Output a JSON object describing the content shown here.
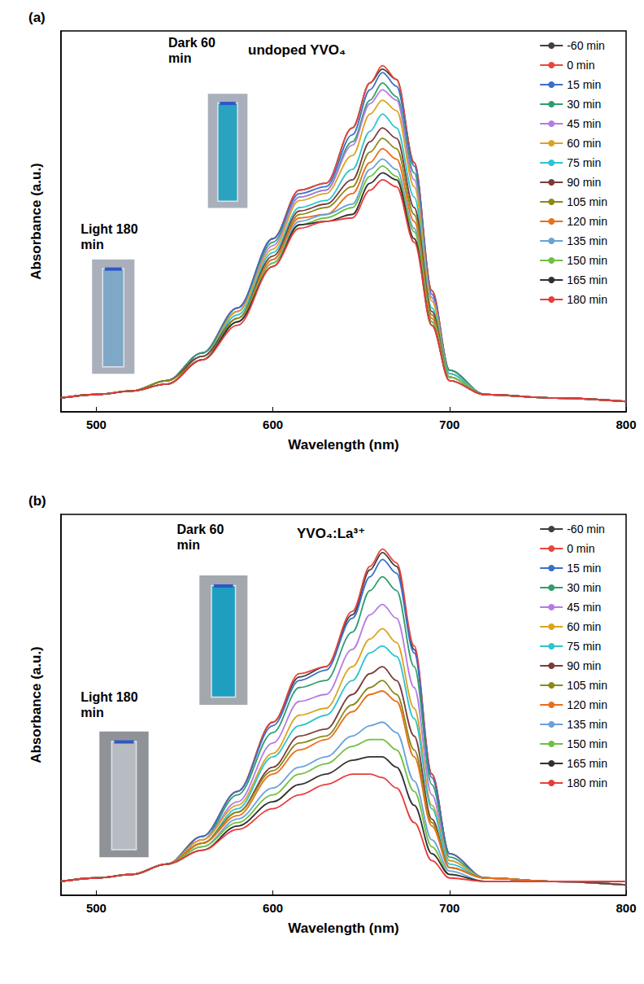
{
  "chart_data": [
    {
      "type": "line",
      "panel": "(a)",
      "title": "undoped YVO₄",
      "x_label": "Wavelength (nm)",
      "y_label": "Absorbance (a.u.)",
      "xlim": [
        480,
        800
      ],
      "xticks": [
        500,
        600,
        700,
        800
      ],
      "ylim": [
        0,
        1.1
      ],
      "yticks": [],
      "grid": false,
      "legend": "top-right",
      "tick_labels": "x",
      "annotations": [
        "Dark 60 min",
        "Light 180 min"
      ],
      "x": [
        480,
        500,
        520,
        540,
        560,
        580,
        600,
        615,
        630,
        645,
        655,
        662,
        670,
        680,
        690,
        700,
        720,
        760,
        800
      ],
      "series": [
        {
          "name": "-60 min",
          "color": "#404040",
          "values": [
            0.04,
            0.05,
            0.06,
            0.09,
            0.17,
            0.3,
            0.5,
            0.64,
            0.66,
            0.82,
            0.95,
            0.99,
            0.96,
            0.72,
            0.35,
            0.12,
            0.05,
            0.04,
            0.03
          ]
        },
        {
          "name": "0 min",
          "color": "#e8463c",
          "values": [
            0.04,
            0.05,
            0.06,
            0.09,
            0.17,
            0.3,
            0.5,
            0.64,
            0.66,
            0.82,
            0.95,
            1.0,
            0.96,
            0.72,
            0.35,
            0.12,
            0.05,
            0.04,
            0.03
          ]
        },
        {
          "name": "15 min",
          "color": "#3a6fc9",
          "values": [
            0.04,
            0.05,
            0.06,
            0.09,
            0.17,
            0.3,
            0.5,
            0.63,
            0.65,
            0.8,
            0.93,
            0.98,
            0.94,
            0.71,
            0.34,
            0.12,
            0.05,
            0.04,
            0.03
          ]
        },
        {
          "name": "30 min",
          "color": "#2e9e6e",
          "values": [
            0.04,
            0.05,
            0.06,
            0.09,
            0.17,
            0.29,
            0.49,
            0.62,
            0.64,
            0.78,
            0.9,
            0.95,
            0.91,
            0.69,
            0.33,
            0.12,
            0.05,
            0.04,
            0.03
          ]
        },
        {
          "name": "45 min",
          "color": "#b57be6",
          "values": [
            0.04,
            0.05,
            0.06,
            0.09,
            0.16,
            0.29,
            0.48,
            0.62,
            0.64,
            0.77,
            0.89,
            0.93,
            0.9,
            0.67,
            0.33,
            0.11,
            0.05,
            0.04,
            0.03
          ]
        },
        {
          "name": "60 min",
          "color": "#d9a520",
          "values": [
            0.04,
            0.05,
            0.06,
            0.09,
            0.16,
            0.29,
            0.47,
            0.61,
            0.63,
            0.74,
            0.86,
            0.9,
            0.87,
            0.65,
            0.32,
            0.11,
            0.05,
            0.04,
            0.03
          ]
        },
        {
          "name": "75 min",
          "color": "#2ec4d0",
          "values": [
            0.04,
            0.05,
            0.06,
            0.09,
            0.16,
            0.28,
            0.46,
            0.59,
            0.61,
            0.7,
            0.81,
            0.86,
            0.82,
            0.62,
            0.3,
            0.11,
            0.05,
            0.04,
            0.03
          ]
        },
        {
          "name": "90 min",
          "color": "#7a3b3b",
          "values": [
            0.04,
            0.05,
            0.06,
            0.09,
            0.16,
            0.27,
            0.45,
            0.58,
            0.6,
            0.67,
            0.78,
            0.82,
            0.79,
            0.59,
            0.29,
            0.1,
            0.05,
            0.04,
            0.03
          ]
        },
        {
          "name": "105 min",
          "color": "#8a8a1a",
          "values": [
            0.04,
            0.05,
            0.06,
            0.09,
            0.15,
            0.27,
            0.44,
            0.57,
            0.59,
            0.65,
            0.75,
            0.79,
            0.76,
            0.57,
            0.28,
            0.1,
            0.05,
            0.04,
            0.03
          ]
        },
        {
          "name": "120 min",
          "color": "#e8701a",
          "values": [
            0.04,
            0.05,
            0.06,
            0.08,
            0.15,
            0.26,
            0.44,
            0.56,
            0.57,
            0.63,
            0.72,
            0.76,
            0.73,
            0.55,
            0.27,
            0.1,
            0.05,
            0.04,
            0.03
          ]
        },
        {
          "name": "135 min",
          "color": "#6aa2d8",
          "values": [
            0.04,
            0.05,
            0.06,
            0.08,
            0.15,
            0.26,
            0.43,
            0.55,
            0.57,
            0.6,
            0.7,
            0.73,
            0.7,
            0.53,
            0.26,
            0.1,
            0.05,
            0.04,
            0.03
          ]
        },
        {
          "name": "150 min",
          "color": "#70c040",
          "values": [
            0.04,
            0.05,
            0.06,
            0.08,
            0.15,
            0.26,
            0.43,
            0.54,
            0.56,
            0.59,
            0.68,
            0.71,
            0.68,
            0.52,
            0.26,
            0.1,
            0.05,
            0.04,
            0.03
          ]
        },
        {
          "name": "165 min",
          "color": "#303030",
          "values": [
            0.04,
            0.05,
            0.06,
            0.08,
            0.15,
            0.26,
            0.42,
            0.54,
            0.55,
            0.57,
            0.66,
            0.69,
            0.67,
            0.5,
            0.25,
            0.09,
            0.05,
            0.04,
            0.03
          ]
        },
        {
          "name": "180 min",
          "color": "#e83c3c",
          "values": [
            0.04,
            0.05,
            0.06,
            0.08,
            0.15,
            0.25,
            0.42,
            0.53,
            0.55,
            0.56,
            0.64,
            0.67,
            0.65,
            0.49,
            0.25,
            0.09,
            0.05,
            0.04,
            0.03
          ]
        }
      ]
    },
    {
      "type": "line",
      "panel": "(b)",
      "title": "YVO₄:La³⁺",
      "x_label": "Wavelength (nm)",
      "y_label": "Absorbance (a.u.)",
      "xlim": [
        480,
        800
      ],
      "xticks": [
        500,
        600,
        700,
        800
      ],
      "ylim": [
        0,
        1.1
      ],
      "yticks": [],
      "grid": false,
      "legend": "top-right",
      "tick_labels": "x",
      "annotations": [
        "Dark 60 min",
        "Light 180 min"
      ],
      "x": [
        480,
        500,
        520,
        540,
        560,
        580,
        600,
        615,
        630,
        645,
        655,
        662,
        670,
        680,
        690,
        700,
        720,
        760,
        800
      ],
      "series": [
        {
          "name": "-60 min",
          "color": "#404040",
          "values": [
            0.04,
            0.05,
            0.06,
            0.09,
            0.17,
            0.3,
            0.5,
            0.63,
            0.66,
            0.81,
            0.94,
            0.99,
            0.95,
            0.71,
            0.35,
            0.12,
            0.05,
            0.04,
            0.03
          ]
        },
        {
          "name": "0 min",
          "color": "#e8463c",
          "values": [
            0.04,
            0.05,
            0.06,
            0.09,
            0.17,
            0.3,
            0.5,
            0.64,
            0.66,
            0.82,
            0.95,
            1.0,
            0.96,
            0.72,
            0.35,
            0.12,
            0.05,
            0.04,
            0.03
          ]
        },
        {
          "name": "15 min",
          "color": "#3a6fc9",
          "values": [
            0.04,
            0.05,
            0.06,
            0.09,
            0.17,
            0.3,
            0.49,
            0.62,
            0.65,
            0.8,
            0.92,
            0.97,
            0.93,
            0.7,
            0.34,
            0.12,
            0.05,
            0.04,
            0.03
          ]
        },
        {
          "name": "30 min",
          "color": "#2e9e6e",
          "values": [
            0.04,
            0.05,
            0.06,
            0.09,
            0.16,
            0.29,
            0.47,
            0.6,
            0.62,
            0.76,
            0.88,
            0.92,
            0.88,
            0.66,
            0.32,
            0.11,
            0.05,
            0.04,
            0.03
          ]
        },
        {
          "name": "45 min",
          "color": "#b57be6",
          "values": [
            0.04,
            0.05,
            0.06,
            0.09,
            0.16,
            0.27,
            0.44,
            0.56,
            0.58,
            0.71,
            0.81,
            0.84,
            0.8,
            0.6,
            0.29,
            0.1,
            0.05,
            0.04,
            0.03
          ]
        },
        {
          "name": "60 min",
          "color": "#d9a520",
          "values": [
            0.04,
            0.05,
            0.06,
            0.09,
            0.16,
            0.26,
            0.41,
            0.52,
            0.54,
            0.66,
            0.74,
            0.77,
            0.73,
            0.54,
            0.26,
            0.1,
            0.05,
            0.04,
            0.03
          ]
        },
        {
          "name": "75 min",
          "color": "#2ec4d0",
          "values": [
            0.04,
            0.05,
            0.06,
            0.09,
            0.15,
            0.25,
            0.4,
            0.49,
            0.52,
            0.62,
            0.7,
            0.72,
            0.69,
            0.51,
            0.25,
            0.09,
            0.05,
            0.04,
            0.03
          ]
        },
        {
          "name": "90 min",
          "color": "#7a3b3b",
          "values": [
            0.04,
            0.05,
            0.06,
            0.09,
            0.15,
            0.24,
            0.37,
            0.46,
            0.48,
            0.58,
            0.64,
            0.66,
            0.62,
            0.46,
            0.22,
            0.08,
            0.05,
            0.04,
            0.03
          ]
        },
        {
          "name": "105 min",
          "color": "#8a8a1a",
          "values": [
            0.04,
            0.05,
            0.06,
            0.09,
            0.15,
            0.24,
            0.36,
            0.44,
            0.46,
            0.55,
            0.6,
            0.62,
            0.58,
            0.42,
            0.21,
            0.08,
            0.05,
            0.04,
            0.04
          ]
        },
        {
          "name": "120 min",
          "color": "#e8701a",
          "values": [
            0.04,
            0.05,
            0.06,
            0.09,
            0.15,
            0.23,
            0.35,
            0.42,
            0.45,
            0.53,
            0.58,
            0.59,
            0.56,
            0.4,
            0.2,
            0.08,
            0.05,
            0.04,
            0.04
          ]
        },
        {
          "name": "135 min",
          "color": "#6aa2d8",
          "values": [
            0.04,
            0.05,
            0.06,
            0.09,
            0.14,
            0.22,
            0.31,
            0.37,
            0.4,
            0.46,
            0.49,
            0.5,
            0.47,
            0.33,
            0.16,
            0.07,
            0.04,
            0.04,
            0.04
          ]
        },
        {
          "name": "150 min",
          "color": "#70c040",
          "values": [
            0.04,
            0.05,
            0.06,
            0.09,
            0.14,
            0.21,
            0.29,
            0.35,
            0.38,
            0.43,
            0.45,
            0.45,
            0.42,
            0.3,
            0.14,
            0.06,
            0.04,
            0.04,
            0.04
          ]
        },
        {
          "name": "165 min",
          "color": "#303030",
          "values": [
            0.04,
            0.05,
            0.06,
            0.09,
            0.13,
            0.2,
            0.27,
            0.32,
            0.35,
            0.39,
            0.4,
            0.4,
            0.37,
            0.26,
            0.12,
            0.06,
            0.04,
            0.04,
            0.04
          ]
        },
        {
          "name": "180 min",
          "color": "#e83c3c",
          "values": [
            0.04,
            0.05,
            0.06,
            0.09,
            0.13,
            0.19,
            0.25,
            0.29,
            0.32,
            0.35,
            0.35,
            0.34,
            0.31,
            0.21,
            0.1,
            0.05,
            0.04,
            0.04,
            0.04
          ]
        }
      ]
    }
  ]
}
